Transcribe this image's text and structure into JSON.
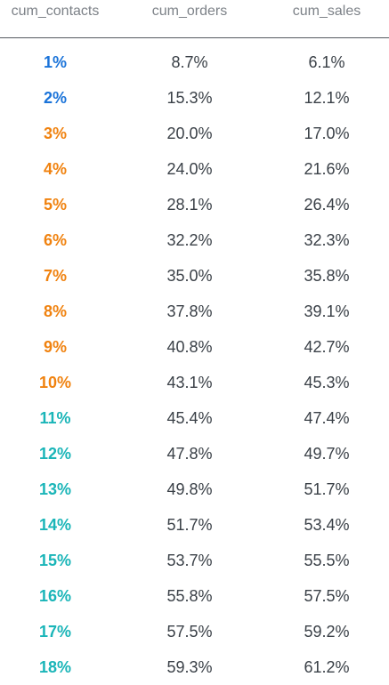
{
  "table": {
    "columns": [
      "cum_contacts",
      "cum_orders",
      "cum_sales"
    ],
    "colors": {
      "blue": "#1a73d9",
      "orange": "#f0820f",
      "teal": "#1ab5b8"
    },
    "rows": [
      {
        "contacts": "1%",
        "orders": "8.7%",
        "sales": "6.1%",
        "group": "blue"
      },
      {
        "contacts": "2%",
        "orders": "15.3%",
        "sales": "12.1%",
        "group": "blue"
      },
      {
        "contacts": "3%",
        "orders": "20.0%",
        "sales": "17.0%",
        "group": "orange"
      },
      {
        "contacts": "4%",
        "orders": "24.0%",
        "sales": "21.6%",
        "group": "orange"
      },
      {
        "contacts": "5%",
        "orders": "28.1%",
        "sales": "26.4%",
        "group": "orange"
      },
      {
        "contacts": "6%",
        "orders": "32.2%",
        "sales": "32.3%",
        "group": "orange"
      },
      {
        "contacts": "7%",
        "orders": "35.0%",
        "sales": "35.8%",
        "group": "orange"
      },
      {
        "contacts": "8%",
        "orders": "37.8%",
        "sales": "39.1%",
        "group": "orange"
      },
      {
        "contacts": "9%",
        "orders": "40.8%",
        "sales": "42.7%",
        "group": "orange"
      },
      {
        "contacts": "10%",
        "orders": "43.1%",
        "sales": "45.3%",
        "group": "orange"
      },
      {
        "contacts": "11%",
        "orders": "45.4%",
        "sales": "47.4%",
        "group": "teal"
      },
      {
        "contacts": "12%",
        "orders": "47.8%",
        "sales": "49.7%",
        "group": "teal"
      },
      {
        "contacts": "13%",
        "orders": "49.8%",
        "sales": "51.7%",
        "group": "teal"
      },
      {
        "contacts": "14%",
        "orders": "51.7%",
        "sales": "53.4%",
        "group": "teal"
      },
      {
        "contacts": "15%",
        "orders": "53.7%",
        "sales": "55.5%",
        "group": "teal"
      },
      {
        "contacts": "16%",
        "orders": "55.8%",
        "sales": "57.5%",
        "group": "teal"
      },
      {
        "contacts": "17%",
        "orders": "57.5%",
        "sales": "59.2%",
        "group": "teal"
      },
      {
        "contacts": "18%",
        "orders": "59.3%",
        "sales": "61.2%",
        "group": "teal"
      }
    ]
  }
}
